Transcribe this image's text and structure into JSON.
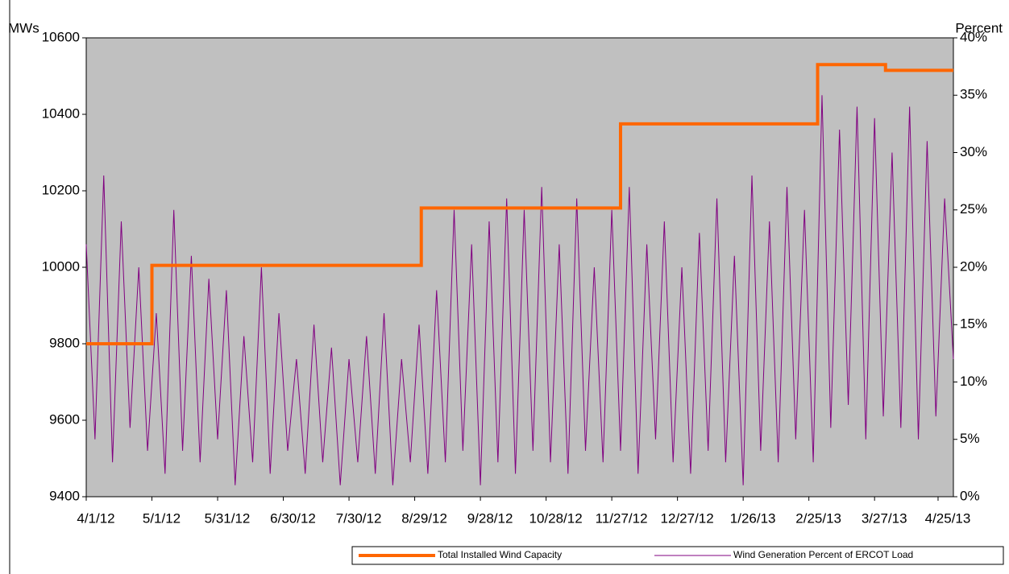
{
  "chart_data": {
    "type": "line",
    "y_label": "MWs",
    "y2_label": "Percent",
    "xlim": [
      "4/1/12",
      "5/2/13"
    ],
    "xticks": [
      "4/1/12",
      "5/1/12",
      "5/31/12",
      "6/30/12",
      "7/30/12",
      "8/29/12",
      "9/28/12",
      "10/28/12",
      "11/27/12",
      "12/27/12",
      "1/26/13",
      "2/25/13",
      "3/27/13",
      "4/25/13"
    ],
    "ylim": [
      9400,
      10600
    ],
    "yticks": [
      9400,
      9600,
      9800,
      10000,
      10200,
      10400,
      10600
    ],
    "y2lim": [
      0,
      40
    ],
    "y2ticks": [
      {
        "value": 0,
        "label": "0%"
      },
      {
        "value": 5,
        "label": "5%"
      },
      {
        "value": 10,
        "label": "10%"
      },
      {
        "value": 15,
        "label": "15%"
      },
      {
        "value": 20,
        "label": "20%"
      },
      {
        "value": 25,
        "label": "25%"
      },
      {
        "value": 30,
        "label": "30%"
      },
      {
        "value": 35,
        "label": "35%"
      },
      {
        "value": 40,
        "label": "40%"
      }
    ],
    "legend": "bottom",
    "background": "#c0c0c0",
    "series": [
      {
        "name": "Total Installed Wind Capacity",
        "color": "#ff6600",
        "step": true,
        "axis": "y",
        "x": [
          "4/1/12",
          "5/1/12",
          "9/1/12",
          "12/1/12",
          "3/1/13",
          "4/1/13",
          "5/2/13"
        ],
        "values": [
          9800,
          10005,
          10155,
          10375,
          10530,
          10515,
          10515
        ]
      },
      {
        "name": "Wind Generation Percent of ERCOT Load",
        "color": "#800080",
        "axis": "y2",
        "x": [
          "4/1/12",
          "4/5/12",
          "4/9/12",
          "4/13/12",
          "4/17/12",
          "4/21/12",
          "4/25/12",
          "4/29/12",
          "5/3/12",
          "5/7/12",
          "5/11/12",
          "5/15/12",
          "5/19/12",
          "5/23/12",
          "5/27/12",
          "5/31/12",
          "6/4/12",
          "6/8/12",
          "6/12/12",
          "6/16/12",
          "6/20/12",
          "6/24/12",
          "6/28/12",
          "7/2/12",
          "7/6/12",
          "7/10/12",
          "7/14/12",
          "7/18/12",
          "7/22/12",
          "7/26/12",
          "7/30/12",
          "8/3/12",
          "8/7/12",
          "8/11/12",
          "8/15/12",
          "8/19/12",
          "8/23/12",
          "8/27/12",
          "8/31/12",
          "9/4/12",
          "9/8/12",
          "9/12/12",
          "9/16/12",
          "9/20/12",
          "9/24/12",
          "9/28/12",
          "10/2/12",
          "10/6/12",
          "10/10/12",
          "10/14/12",
          "10/18/12",
          "10/22/12",
          "10/26/12",
          "10/30/12",
          "11/3/12",
          "11/7/12",
          "11/11/12",
          "11/15/12",
          "11/19/12",
          "11/23/12",
          "11/27/12",
          "12/1/12",
          "12/5/12",
          "12/9/12",
          "12/13/12",
          "12/17/12",
          "12/21/12",
          "12/25/12",
          "12/29/12",
          "1/2/13",
          "1/6/13",
          "1/10/13",
          "1/14/13",
          "1/18/13",
          "1/22/13",
          "1/26/13",
          "1/30/13",
          "2/3/13",
          "2/7/13",
          "2/11/13",
          "2/15/13",
          "2/19/13",
          "2/23/13",
          "2/27/13",
          "3/3/13",
          "3/7/13",
          "3/11/13",
          "3/15/13",
          "3/19/13",
          "3/23/13",
          "3/27/13",
          "3/31/13",
          "4/4/13",
          "4/8/13",
          "4/12/13",
          "4/16/13",
          "4/20/13",
          "4/24/13",
          "4/28/13",
          "5/2/13"
        ],
        "values": [
          22,
          5,
          28,
          3,
          24,
          6,
          20,
          4,
          16,
          2,
          25,
          4,
          21,
          3,
          19,
          5,
          18,
          1,
          14,
          3,
          20,
          2,
          16,
          4,
          12,
          2,
          15,
          3,
          13,
          1,
          12,
          3,
          14,
          2,
          16,
          1,
          12,
          3,
          15,
          2,
          18,
          3,
          25,
          4,
          22,
          1,
          24,
          3,
          26,
          2,
          25,
          4,
          27,
          3,
          22,
          2,
          26,
          4,
          20,
          3,
          25,
          4,
          27,
          2,
          22,
          5,
          24,
          3,
          20,
          2,
          23,
          4,
          26,
          3,
          21,
          1,
          28,
          4,
          24,
          3,
          27,
          5,
          25,
          3,
          35,
          6,
          32,
          8,
          34,
          5,
          33,
          7,
          30,
          6,
          34,
          5,
          31,
          7,
          26,
          12
        ]
      }
    ]
  }
}
